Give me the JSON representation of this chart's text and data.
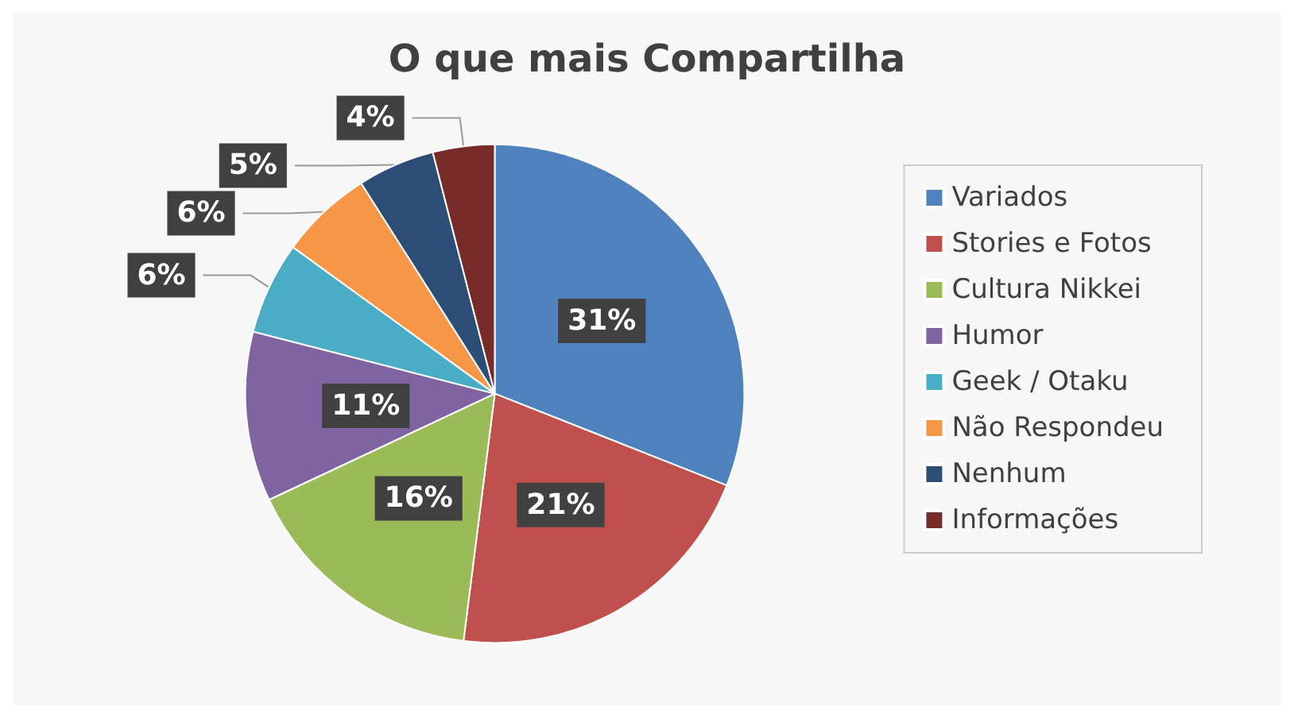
{
  "chart_data": {
    "type": "pie",
    "title": "O que mais Compartilha",
    "categories": [
      "Variados",
      "Stories e Fotos",
      "Cultura Nikkei",
      "Humor",
      "Geek / Otaku",
      "Não Respondeu",
      "Nenhum",
      "Informações"
    ],
    "values": [
      31,
      21,
      16,
      11,
      6,
      6,
      5,
      4
    ],
    "colors": [
      "#4f81bd",
      "#c0504d",
      "#9bbb59",
      "#8064a2",
      "#4bacc6",
      "#f79646",
      "#2c4d75",
      "#772c2a"
    ],
    "value_labels": [
      "31%",
      "21%",
      "16%",
      "11%",
      "6%",
      "6%",
      "5%",
      "4%"
    ],
    "legend": "right"
  }
}
